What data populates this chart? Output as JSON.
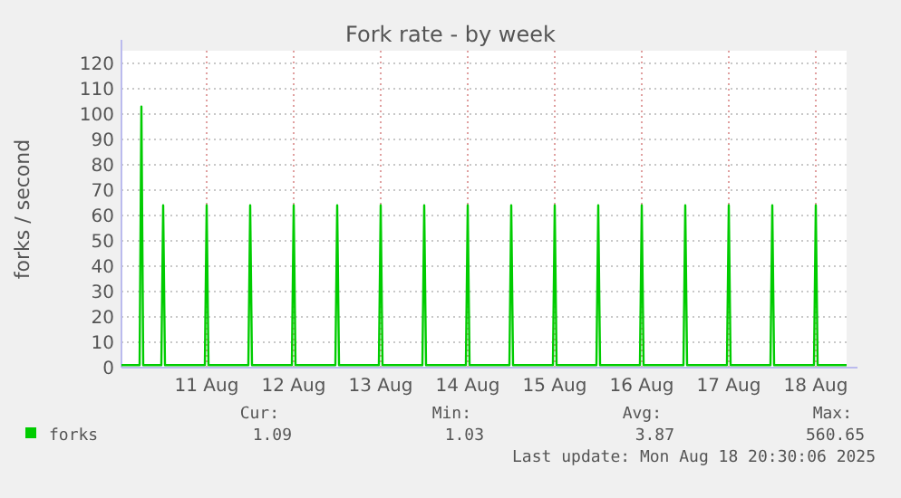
{
  "chart_data": {
    "type": "line",
    "title": "Fork rate - by week",
    "ylabel": "forks / second",
    "x": [
      "2025-08-10T12:30",
      "2025-08-10T17:30",
      "2025-08-10T18:00",
      "2025-08-10T18:30",
      "2025-08-10T23:30",
      "2025-08-11T00:00",
      "2025-08-11T00:30",
      "2025-08-11T11:30",
      "2025-08-11T12:00",
      "2025-08-11T12:30",
      "2025-08-11T23:30",
      "2025-08-12T00:00",
      "2025-08-12T00:30",
      "2025-08-12T11:30",
      "2025-08-12T12:00",
      "2025-08-12T12:30",
      "2025-08-12T23:30",
      "2025-08-13T00:00",
      "2025-08-13T00:30",
      "2025-08-13T11:30",
      "2025-08-13T12:00",
      "2025-08-13T12:30",
      "2025-08-13T23:30",
      "2025-08-14T00:00",
      "2025-08-14T00:30",
      "2025-08-14T11:30",
      "2025-08-14T12:00",
      "2025-08-14T12:30",
      "2025-08-14T23:30",
      "2025-08-15T00:00",
      "2025-08-15T00:30",
      "2025-08-15T11:30",
      "2025-08-15T12:00",
      "2025-08-15T12:30",
      "2025-08-15T23:30",
      "2025-08-16T00:00",
      "2025-08-16T00:30",
      "2025-08-16T11:30",
      "2025-08-16T12:00",
      "2025-08-16T12:30",
      "2025-08-16T23:30",
      "2025-08-17T00:00",
      "2025-08-17T00:30",
      "2025-08-17T11:30",
      "2025-08-17T12:00",
      "2025-08-17T12:30",
      "2025-08-17T23:30",
      "2025-08-18T00:00",
      "2025-08-18T00:30",
      "2025-08-18T11:30",
      "2025-08-18T12:00",
      "2025-08-18T12:30",
      "2025-08-18T20:30"
    ],
    "series": [
      {
        "name": "forks",
        "color": "#00cc00",
        "values": [
          1,
          1,
          103,
          1,
          1,
          64,
          1,
          1,
          64,
          1,
          1,
          64,
          1,
          1,
          64,
          1,
          1,
          64,
          1,
          1,
          64,
          1,
          1,
          64,
          1,
          1,
          64,
          1,
          1,
          64,
          1,
          1,
          64,
          1,
          1,
          64,
          1,
          1,
          64,
          1,
          1,
          64,
          1,
          1,
          64,
          1,
          1,
          64,
          1,
          1,
          64,
          1,
          1
        ]
      }
    ],
    "xlim": [
      "2025-08-10T12:30",
      "2025-08-18T20:30"
    ],
    "xticks": [
      {
        "value": "2025-08-11T12:00",
        "label": "11 Aug"
      },
      {
        "value": "2025-08-12T12:00",
        "label": "12 Aug"
      },
      {
        "value": "2025-08-13T12:00",
        "label": "13 Aug"
      },
      {
        "value": "2025-08-14T12:00",
        "label": "14 Aug"
      },
      {
        "value": "2025-08-15T12:00",
        "label": "15 Aug"
      },
      {
        "value": "2025-08-16T12:00",
        "label": "16 Aug"
      },
      {
        "value": "2025-08-17T12:00",
        "label": "17 Aug"
      },
      {
        "value": "2025-08-18T12:00",
        "label": "18 Aug"
      }
    ],
    "ylim": [
      0,
      125
    ],
    "yticks": [
      0,
      10,
      20,
      30,
      40,
      50,
      60,
      70,
      80,
      90,
      100,
      110,
      120
    ],
    "grid": true,
    "legend": "bottom left",
    "annotations": [
      "Cur:",
      "Min:",
      "Avg:",
      "Max:",
      "1.09",
      "1.03",
      "3.87",
      "560.65",
      "Last update: Mon Aug 18 20:30:06 2025"
    ]
  }
}
